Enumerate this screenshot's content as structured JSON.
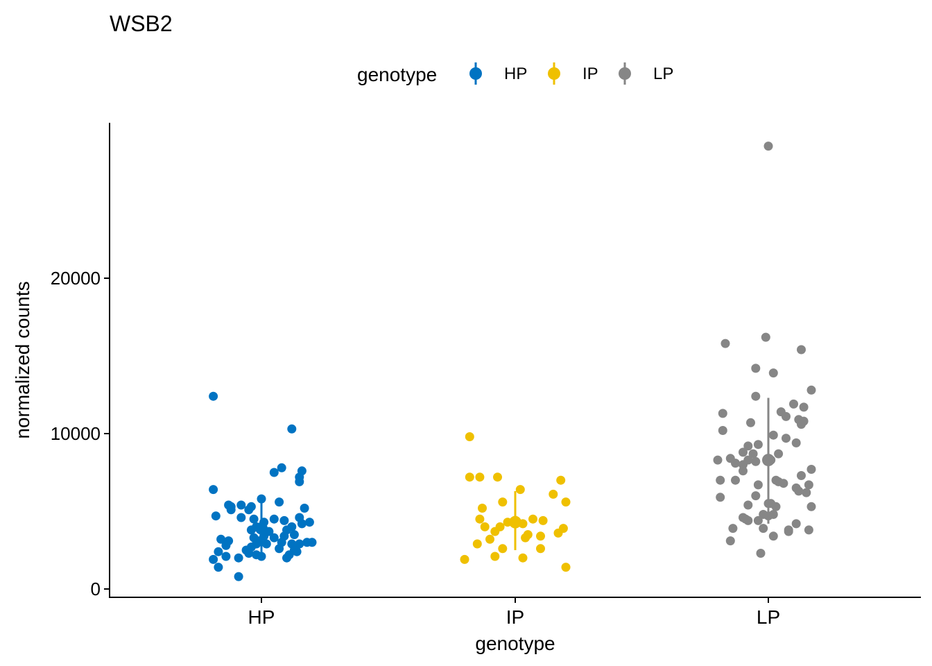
{
  "chart_data": {
    "type": "scatter",
    "title": "WSB2",
    "xlabel": "genotype",
    "ylabel": "normalized counts",
    "categories": [
      "HP",
      "IP",
      "LP"
    ],
    "y_ticks": [
      0,
      10000,
      20000
    ],
    "y_tick_labels": [
      "0",
      "10000",
      "20000"
    ],
    "ylim": [
      -500,
      29000
    ],
    "legend": {
      "title": "genotype",
      "position": "top",
      "entries": [
        "HP",
        "IP",
        "LP"
      ]
    },
    "grid": false,
    "colors": {
      "HP": "#0073C2",
      "IP": "#EFC000",
      "LP": "#868686"
    },
    "series": [
      {
        "name": "HP",
        "summary": {
          "mean": 3900,
          "low": 2300,
          "high": 5800
        },
        "points": [
          [
            -0.19,
            12400
          ],
          [
            0.12,
            10300
          ],
          [
            0.08,
            7800
          ],
          [
            0.05,
            7500
          ],
          [
            0.16,
            7600
          ],
          [
            0.15,
            7200
          ],
          [
            0.15,
            6900
          ],
          [
            -0.19,
            6400
          ],
          [
            0,
            5800
          ],
          [
            0.07,
            5600
          ],
          [
            -0.13,
            5400
          ],
          [
            -0.08,
            5400
          ],
          [
            -0.04,
            5300
          ],
          [
            -0.05,
            5100
          ],
          [
            -0.12,
            5300
          ],
          [
            -0.12,
            5100
          ],
          [
            0.17,
            5200
          ],
          [
            -0.18,
            4700
          ],
          [
            -0.08,
            4600
          ],
          [
            -0.03,
            4500
          ],
          [
            0.01,
            4300
          ],
          [
            0.05,
            4500
          ],
          [
            0.09,
            4400
          ],
          [
            0.15,
            4600
          ],
          [
            0.19,
            4300
          ],
          [
            -0.02,
            4000
          ],
          [
            -0.04,
            3800
          ],
          [
            0,
            3900
          ],
          [
            0.03,
            3700
          ],
          [
            0.1,
            3800
          ],
          [
            0.12,
            4000
          ],
          [
            0.16,
            4200
          ],
          [
            -0.03,
            3300
          ],
          [
            0.01,
            3400
          ],
          [
            0.05,
            3300
          ],
          [
            0.09,
            3400
          ],
          [
            0.13,
            3500
          ],
          [
            -0.16,
            3200
          ],
          [
            -0.13,
            3100
          ],
          [
            -0.01,
            3100
          ],
          [
            -0.02,
            2900
          ],
          [
            0.02,
            2900
          ],
          [
            0.08,
            3000
          ],
          [
            0.12,
            2900
          ],
          [
            0.15,
            2900
          ],
          [
            0.18,
            3000
          ],
          [
            0.2,
            3000
          ],
          [
            -0.04,
            2700
          ],
          [
            0.07,
            2600
          ],
          [
            0.14,
            2400
          ],
          [
            -0.14,
            2800
          ],
          [
            -0.06,
            2500
          ],
          [
            -0.05,
            2300
          ],
          [
            -0.02,
            2200
          ],
          [
            0,
            2100
          ],
          [
            0.1,
            2000
          ],
          [
            0.11,
            2200
          ],
          [
            0.13,
            2500
          ],
          [
            -0.17,
            2400
          ],
          [
            -0.14,
            2100
          ],
          [
            -0.09,
            2000
          ],
          [
            -0.19,
            1900
          ],
          [
            -0.17,
            1400
          ],
          [
            -0.09,
            800
          ]
        ]
      },
      {
        "name": "IP",
        "summary": {
          "mean": 4300,
          "low": 2500,
          "high": 6300
        },
        "points": [
          [
            -0.18,
            9800
          ],
          [
            -0.18,
            7200
          ],
          [
            -0.14,
            7200
          ],
          [
            -0.07,
            7200
          ],
          [
            0.18,
            7000
          ],
          [
            0.15,
            6100
          ],
          [
            0.02,
            6400
          ],
          [
            0.2,
            5600
          ],
          [
            -0.05,
            5600
          ],
          [
            -0.13,
            5200
          ],
          [
            -0.14,
            4500
          ],
          [
            -0.03,
            4300
          ],
          [
            0,
            4400
          ],
          [
            0.03,
            4200
          ],
          [
            0.07,
            4500
          ],
          [
            0.11,
            4400
          ],
          [
            -0.06,
            4000
          ],
          [
            -0.12,
            4000
          ],
          [
            -0.08,
            3700
          ],
          [
            0.05,
            3500
          ],
          [
            0.04,
            3300
          ],
          [
            0.1,
            3400
          ],
          [
            0.17,
            3600
          ],
          [
            0.19,
            3900
          ],
          [
            -0.1,
            3200
          ],
          [
            -0.15,
            2900
          ],
          [
            -0.05,
            2600
          ],
          [
            0.1,
            2600
          ],
          [
            -0.08,
            2100
          ],
          [
            0.03,
            2000
          ],
          [
            -0.2,
            1900
          ],
          [
            0.2,
            1400
          ]
        ]
      },
      {
        "name": "LP",
        "summary": {
          "mean": 8300,
          "low": 4200,
          "high": 12300
        },
        "points": [
          [
            0,
            28500
          ],
          [
            -0.01,
            16200
          ],
          [
            -0.17,
            15800
          ],
          [
            0.13,
            15400
          ],
          [
            -0.05,
            14200
          ],
          [
            0.02,
            13900
          ],
          [
            0.17,
            12800
          ],
          [
            -0.05,
            12400
          ],
          [
            0.1,
            11900
          ],
          [
            0.14,
            11700
          ],
          [
            -0.18,
            11300
          ],
          [
            0.05,
            11400
          ],
          [
            0.07,
            11100
          ],
          [
            0.12,
            10900
          ],
          [
            0.13,
            10600
          ],
          [
            -0.07,
            10700
          ],
          [
            0.14,
            10800
          ],
          [
            -0.18,
            10200
          ],
          [
            0.02,
            9900
          ],
          [
            0.07,
            9700
          ],
          [
            0.11,
            9400
          ],
          [
            -0.04,
            9300
          ],
          [
            -0.08,
            9200
          ],
          [
            -0.1,
            8800
          ],
          [
            -0.06,
            8700
          ],
          [
            -0.08,
            8300
          ],
          [
            0.04,
            8700
          ],
          [
            -0.15,
            8400
          ],
          [
            -0.13,
            8100
          ],
          [
            -0.1,
            8000
          ],
          [
            -0.05,
            8200
          ],
          [
            0.01,
            8300
          ],
          [
            -0.2,
            8300
          ],
          [
            0.17,
            7700
          ],
          [
            -0.1,
            7600
          ],
          [
            -0.19,
            7000
          ],
          [
            -0.13,
            7000
          ],
          [
            -0.04,
            6700
          ],
          [
            0.03,
            7000
          ],
          [
            0.04,
            6900
          ],
          [
            0.06,
            6800
          ],
          [
            0.13,
            7300
          ],
          [
            0.16,
            6700
          ],
          [
            0.11,
            6500
          ],
          [
            0.12,
            6300
          ],
          [
            0.15,
            6200
          ],
          [
            -0.19,
            5900
          ],
          [
            -0.05,
            6000
          ],
          [
            -0.08,
            5400
          ],
          [
            0.01,
            5500
          ],
          [
            0,
            5500
          ],
          [
            0.03,
            5300
          ],
          [
            0.17,
            5300
          ],
          [
            -0.02,
            4800
          ],
          [
            0,
            4700
          ],
          [
            0.02,
            4800
          ],
          [
            -0.1,
            4600
          ],
          [
            -0.09,
            4500
          ],
          [
            -0.08,
            4400
          ],
          [
            -0.04,
            4400
          ],
          [
            0.11,
            4200
          ],
          [
            0.08,
            3800
          ],
          [
            -0.14,
            3900
          ],
          [
            0.16,
            3800
          ],
          [
            -0.02,
            3900
          ],
          [
            0.08,
            3700
          ],
          [
            -0.15,
            3100
          ],
          [
            0.02,
            3400
          ],
          [
            -0.03,
            2300
          ]
        ]
      }
    ]
  }
}
